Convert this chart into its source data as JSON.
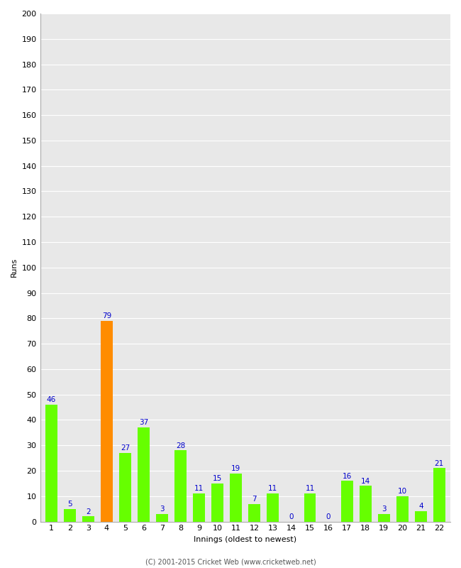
{
  "xlabel": "Innings (oldest to newest)",
  "ylabel": "Runs",
  "categories": [
    "1",
    "2",
    "3",
    "4",
    "5",
    "6",
    "7",
    "8",
    "9",
    "10",
    "11",
    "12",
    "13",
    "14",
    "15",
    "16",
    "17",
    "18",
    "19",
    "20",
    "21",
    "22"
  ],
  "values": [
    46,
    5,
    2,
    79,
    27,
    37,
    3,
    28,
    11,
    15,
    19,
    7,
    11,
    0,
    11,
    0,
    16,
    14,
    3,
    10,
    4,
    21
  ],
  "bar_colors": [
    "#66ff00",
    "#66ff00",
    "#66ff00",
    "#ff8c00",
    "#66ff00",
    "#66ff00",
    "#66ff00",
    "#66ff00",
    "#66ff00",
    "#66ff00",
    "#66ff00",
    "#66ff00",
    "#66ff00",
    "#66ff00",
    "#66ff00",
    "#66ff00",
    "#66ff00",
    "#66ff00",
    "#66ff00",
    "#66ff00",
    "#66ff00",
    "#66ff00"
  ],
  "label_color": "#0000cc",
  "ylim": [
    0,
    200
  ],
  "yticks": [
    0,
    10,
    20,
    30,
    40,
    50,
    60,
    70,
    80,
    90,
    100,
    110,
    120,
    130,
    140,
    150,
    160,
    170,
    180,
    190,
    200
  ],
  "plot_bg_color": "#e8e8e8",
  "fig_bg_color": "#ffffff",
  "grid_color": "#ffffff",
  "footer": "(C) 2001-2015 Cricket Web (www.cricketweb.net)",
  "tick_fontsize": 8,
  "label_fontsize": 7.5,
  "axis_label_fontsize": 8,
  "bar_width": 0.65
}
